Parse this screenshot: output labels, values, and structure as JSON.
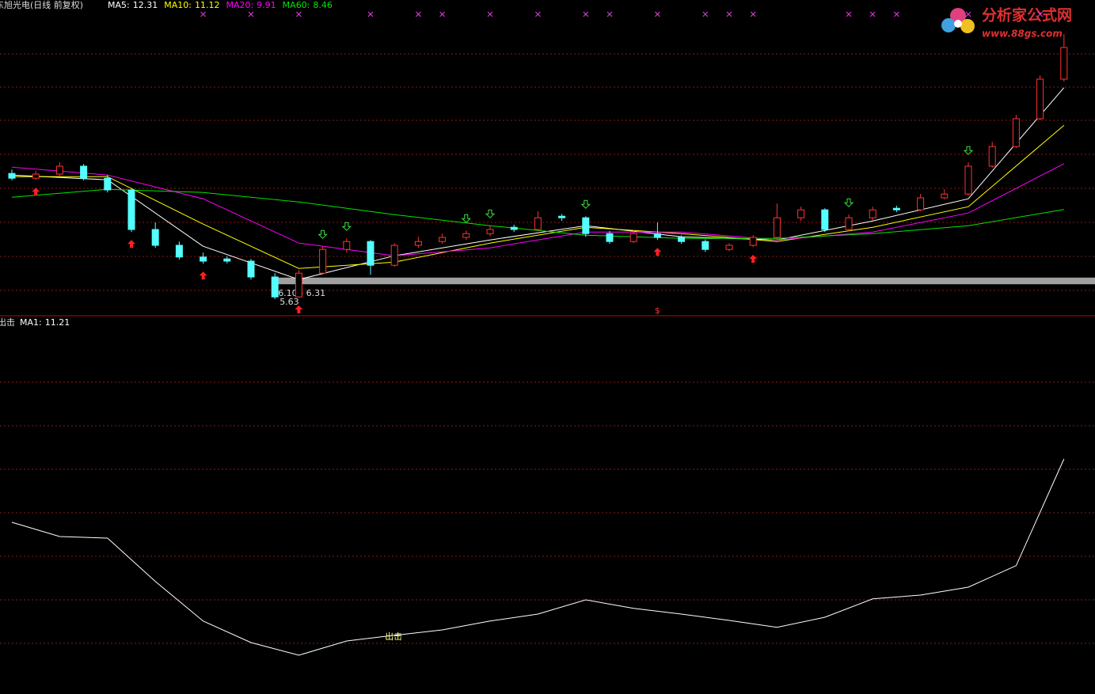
{
  "chart_data": [
    {
      "type": "candlestick",
      "title": "东旭光电(日线 前复权)",
      "candles": [
        [
          9.6,
          9.72,
          9.38,
          9.45
        ],
        [
          9.45,
          9.68,
          9.4,
          9.58
        ],
        [
          9.58,
          9.95,
          9.52,
          9.83
        ],
        [
          9.83,
          9.9,
          9.38,
          9.45
        ],
        [
          9.45,
          9.55,
          9.0,
          9.08
        ],
        [
          9.08,
          9.12,
          7.75,
          7.83
        ],
        [
          7.83,
          8.05,
          7.25,
          7.33
        ],
        [
          7.33,
          7.45,
          6.88,
          6.96
        ],
        [
          6.96,
          7.1,
          6.75,
          6.83
        ],
        [
          6.9,
          6.98,
          6.76,
          6.83
        ],
        [
          6.83,
          6.9,
          6.25,
          6.33
        ],
        [
          6.33,
          6.45,
          5.63,
          5.7
        ],
        [
          5.7,
          6.55,
          5.68,
          6.45
        ],
        [
          6.45,
          7.3,
          6.4,
          7.2
        ],
        [
          7.2,
          7.55,
          7.1,
          7.45
        ],
        [
          7.45,
          7.5,
          6.4,
          6.7
        ],
        [
          6.7,
          7.4,
          6.65,
          7.33
        ],
        [
          7.33,
          7.6,
          7.25,
          7.45
        ],
        [
          7.45,
          7.7,
          7.38,
          7.58
        ],
        [
          7.58,
          7.8,
          7.5,
          7.7
        ],
        [
          7.7,
          7.95,
          7.62,
          7.83
        ],
        [
          7.9,
          7.98,
          7.75,
          7.83
        ],
        [
          7.83,
          8.4,
          7.78,
          8.2
        ],
        [
          8.25,
          8.32,
          8.1,
          8.2
        ],
        [
          8.2,
          8.25,
          7.6,
          7.7
        ],
        [
          7.7,
          7.78,
          7.38,
          7.45
        ],
        [
          7.45,
          7.8,
          7.4,
          7.7
        ],
        [
          7.7,
          8.05,
          7.5,
          7.58
        ],
        [
          7.58,
          7.65,
          7.38,
          7.45
        ],
        [
          7.45,
          7.52,
          7.12,
          7.2
        ],
        [
          7.2,
          7.4,
          7.15,
          7.33
        ],
        [
          7.33,
          7.65,
          7.28,
          7.58
        ],
        [
          7.58,
          8.65,
          7.52,
          8.2
        ],
        [
          8.2,
          8.55,
          8.1,
          8.45
        ],
        [
          8.45,
          8.5,
          7.75,
          7.83
        ],
        [
          7.83,
          8.3,
          7.78,
          8.2
        ],
        [
          8.2,
          8.55,
          8.12,
          8.45
        ],
        [
          8.5,
          8.58,
          8.38,
          8.45
        ],
        [
          8.45,
          8.95,
          8.4,
          8.83
        ],
        [
          8.83,
          9.1,
          8.78,
          8.95
        ],
        [
          8.95,
          9.95,
          8.9,
          9.83
        ],
        [
          9.83,
          10.6,
          9.78,
          10.45
        ],
        [
          10.45,
          11.45,
          10.4,
          11.33
        ],
        [
          11.33,
          12.7,
          11.28,
          12.58
        ],
        [
          12.58,
          14.0,
          12.5,
          13.58
        ]
      ],
      "up_color": "#ff3232",
      "down_color": "#54ffff",
      "x": [
        0,
        4,
        8,
        12,
        16,
        20,
        24,
        28,
        32,
        36,
        40,
        44
      ],
      "series": [
        {
          "name": "MA5:",
          "color": "#ffffff",
          "values": [
            9.55,
            9.4,
            7.3,
            6.25,
            7.0,
            7.5,
            7.95,
            7.6,
            7.5,
            8.1,
            8.8,
            12.31
          ]
        },
        {
          "name": "MA10:",
          "color": "#ffff00",
          "values": [
            9.5,
            9.5,
            8.0,
            6.6,
            6.8,
            7.4,
            7.9,
            7.7,
            7.45,
            7.9,
            8.55,
            11.12
          ]
        },
        {
          "name": "MA20:",
          "color": "#ff00ff",
          "values": [
            9.8,
            9.55,
            8.8,
            7.4,
            7.0,
            7.25,
            7.75,
            7.75,
            7.5,
            7.75,
            8.35,
            9.91
          ]
        },
        {
          "name": "MA60:",
          "color": "#00e600",
          "values": [
            8.85,
            9.1,
            9.0,
            8.7,
            8.3,
            7.95,
            7.65,
            7.55,
            7.55,
            7.7,
            7.95,
            8.46
          ]
        }
      ],
      "zone": {
        "label": "6.10 - 6.31",
        "low": 6.1,
        "high": 6.31,
        "start": 11
      },
      "low_label_index": 11,
      "up_arrows": [
        1,
        5,
        8,
        12,
        27,
        31
      ],
      "down_arrows": [
        13,
        14,
        19,
        20,
        24,
        35,
        40
      ],
      "cross_marks": [
        8,
        10,
        12,
        15,
        17,
        18,
        20,
        22,
        24,
        25,
        27,
        29,
        30,
        31,
        35,
        36,
        37,
        40,
        43
      ],
      "signal_symbol": "$",
      "signal_index": 27,
      "ylim": [
        5.13,
        15.08
      ]
    },
    {
      "type": "line",
      "title": "出击",
      "x": [
        0,
        2,
        4,
        6,
        8,
        10,
        12,
        14,
        16,
        18,
        20,
        22,
        24,
        26,
        28,
        30,
        32,
        34,
        36,
        38,
        40,
        42,
        44
      ],
      "series": [
        {
          "name": "MA1:",
          "color": "#ffffff",
          "values": [
            9.21,
            8.76,
            8.71,
            7.34,
            6.09,
            5.41,
            5.01,
            5.46,
            5.64,
            5.81,
            6.09,
            6.31,
            6.76,
            6.49,
            6.31,
            6.11,
            5.89,
            6.21,
            6.79,
            6.91,
            7.16,
            7.84,
            11.21
          ]
        }
      ],
      "annotation": {
        "text": "出击",
        "index": 16
      },
      "ylim": [
        3.785,
        15.71
      ]
    }
  ],
  "watermark": {
    "title": "分析家公式网",
    "url": "www.88gs.com"
  }
}
